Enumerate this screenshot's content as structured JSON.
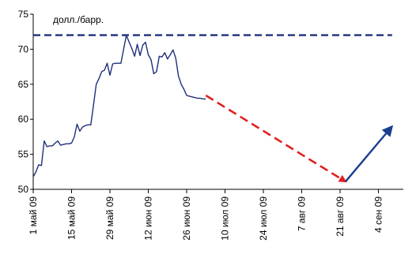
{
  "chart_data": {
    "type": "line",
    "unit_label": "долл./барр.",
    "ylim": [
      50,
      75
    ],
    "yticks": [
      50,
      55,
      60,
      65,
      70,
      75
    ],
    "x_tick_labels": [
      "1 май 09",
      "15 май 09",
      "29 май 09",
      "12 июн 09",
      "26 июн 09",
      "10 июл 09",
      "24 июл 09",
      "7 авг 09",
      "21 авг 09",
      "4 сен 09"
    ],
    "grid": false,
    "legend": "none",
    "colors": {
      "price": "#1f2f7a",
      "ceiling": "#1f2f7a",
      "forecast_down": "#e02020",
      "forecast_up": "#1a3f8f"
    },
    "series": [
      {
        "style": "solid",
        "x": [
          "2009-05-01",
          "2009-05-02",
          "2009-05-03",
          "2009-05-04",
          "2009-05-05",
          "2009-05-06",
          "2009-05-07",
          "2009-05-08",
          "2009-05-09",
          "2009-05-10",
          "2009-05-11",
          "2009-05-12",
          "2009-05-13",
          "2009-05-14",
          "2009-05-15",
          "2009-05-16",
          "2009-05-17",
          "2009-05-18",
          "2009-05-19",
          "2009-05-20",
          "2009-05-21",
          "2009-05-22",
          "2009-05-23",
          "2009-05-24",
          "2009-05-25",
          "2009-05-26",
          "2009-05-27",
          "2009-05-28",
          "2009-05-29",
          "2009-05-30",
          "2009-05-31",
          "2009-06-01",
          "2009-06-02",
          "2009-06-03",
          "2009-06-04",
          "2009-06-05",
          "2009-06-06",
          "2009-06-07",
          "2009-06-08",
          "2009-06-09",
          "2009-06-10",
          "2009-06-11",
          "2009-06-12",
          "2009-06-13",
          "2009-06-14",
          "2009-06-15",
          "2009-06-16",
          "2009-06-17",
          "2009-06-18",
          "2009-06-19",
          "2009-06-20",
          "2009-06-21",
          "2009-06-22",
          "2009-06-23",
          "2009-06-24",
          "2009-06-25",
          "2009-06-26",
          "2009-06-27",
          "2009-06-28",
          "2009-06-29",
          "2009-06-30",
          "2009-07-01",
          "2009-07-02",
          "2009-07-03"
        ],
        "y": [
          51.8,
          52.5,
          53.5,
          53.4,
          56.9,
          56.1,
          56.2,
          56.2,
          56.6,
          56.9,
          56.3,
          56.4,
          56.5,
          56.5,
          56.6,
          57.5,
          59.3,
          58.3,
          58.9,
          59.1,
          59.2,
          59.2,
          62.0,
          65.0,
          65.8,
          66.8,
          67.0,
          68.0,
          66.3,
          67.9,
          68.0,
          68.0,
          68.0,
          70.0,
          72.0,
          71.0,
          70.1,
          69.0,
          70.7,
          69.1,
          70.6,
          71.0,
          69.2,
          68.5,
          66.5,
          66.8,
          69.0,
          68.9,
          69.5,
          68.6,
          69.2,
          69.9,
          68.8,
          66.2,
          65.0,
          64.3,
          63.4,
          63.3,
          63.2,
          63.1,
          63.0,
          63.0,
          62.9,
          62.9
        ]
      },
      {
        "style": "dashed",
        "x": [
          "2009-05-01",
          "2009-09-09"
        ],
        "y": [
          72,
          72
        ]
      },
      {
        "style": "dashed-arrow",
        "x": [
          "2009-07-03",
          "2009-08-23"
        ],
        "y": [
          63.4,
          51.1
        ]
      },
      {
        "style": "arrow",
        "x": [
          "2009-08-23",
          "2009-09-09"
        ],
        "y": [
          51.1,
          59.0
        ]
      }
    ]
  }
}
